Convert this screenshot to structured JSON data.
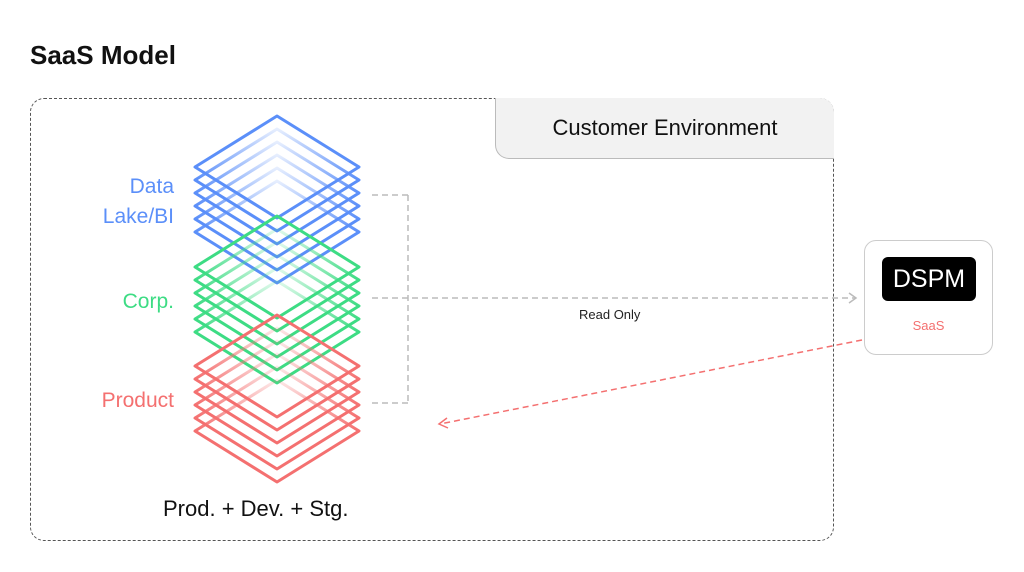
{
  "title": "SaaS Model",
  "environment": {
    "label": "Customer Environment"
  },
  "layers": [
    {
      "label_line1": "Data",
      "label_line2": "Lake/BI",
      "color": "#5b8ff9"
    },
    {
      "label": "Corp.",
      "color": "#3ddc84"
    },
    {
      "label": "Product",
      "color": "#f47070"
    }
  ],
  "footer": "Prod. + Dev. + Stg.",
  "connection": {
    "label": "Read Only",
    "color": "#bbbbbb",
    "return_color": "#f47070"
  },
  "dspm": {
    "badge": "DSPM",
    "subtitle": "SaaS"
  }
}
